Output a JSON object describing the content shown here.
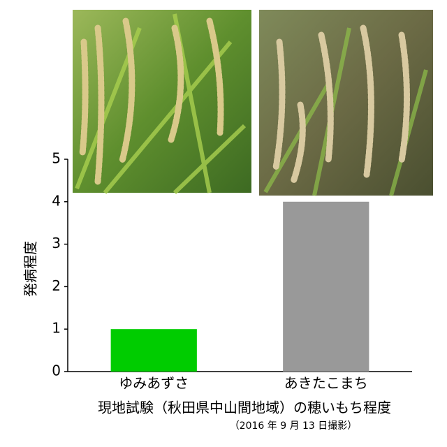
{
  "chart_data": {
    "type": "bar",
    "title": "現地試験（秋田県中山間地域）の穂いもち程度",
    "subtitle": "（2016 年 9 月 13 日撮影）",
    "y_label": "発病程度",
    "categories": [
      "ゆみあずさ",
      "あきたこまち"
    ],
    "values": [
      1,
      4
    ],
    "colors": [
      "#00cc00",
      "#999999"
    ],
    "ylim": [
      0,
      5
    ],
    "yticks": [
      0,
      1,
      2,
      3,
      4,
      5
    ],
    "grid": false
  }
}
